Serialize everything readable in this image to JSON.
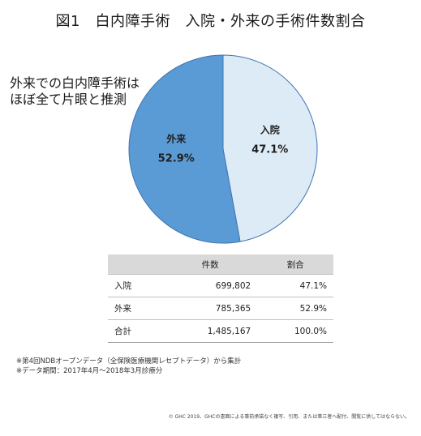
{
  "title": "図1　白内障手術　入院・外来の手術件数割合",
  "note_lines": [
    "外来での白内障手術は",
    "ほぼ全て片眼と推測"
  ],
  "chart_data": {
    "type": "pie",
    "slices": [
      {
        "label": "入院",
        "value": 47.1,
        "value_label": "47.1%",
        "color": "#ddebf7"
      },
      {
        "label": "外来",
        "value": 52.9,
        "value_label": "52.9%",
        "color": "#5b9bd5"
      }
    ],
    "start": "12 o'clock",
    "direction": "clockwise"
  },
  "table": {
    "headers": [
      "",
      "件数",
      "割合"
    ],
    "rows": [
      [
        "入院",
        "699,802",
        "47.1%"
      ],
      [
        "外来",
        "785,365",
        "52.9%"
      ],
      [
        "合計",
        "1,485,167",
        "100.0%"
      ]
    ]
  },
  "footnotes": [
    "※第4回NDBオープンデータ（全保険医療機関レセプトデータ）から集計",
    "※データ期間：2017年4月～2018年3月診療分"
  ],
  "copyright": "© GHC 2019．GHCの書面による事前承諾なく複写、引用、または第三者へ配付、閲覧に供してはならない。",
  "colors": {
    "slice_border": "#3f74b0",
    "table_header_bg": "#d9d9d9"
  }
}
